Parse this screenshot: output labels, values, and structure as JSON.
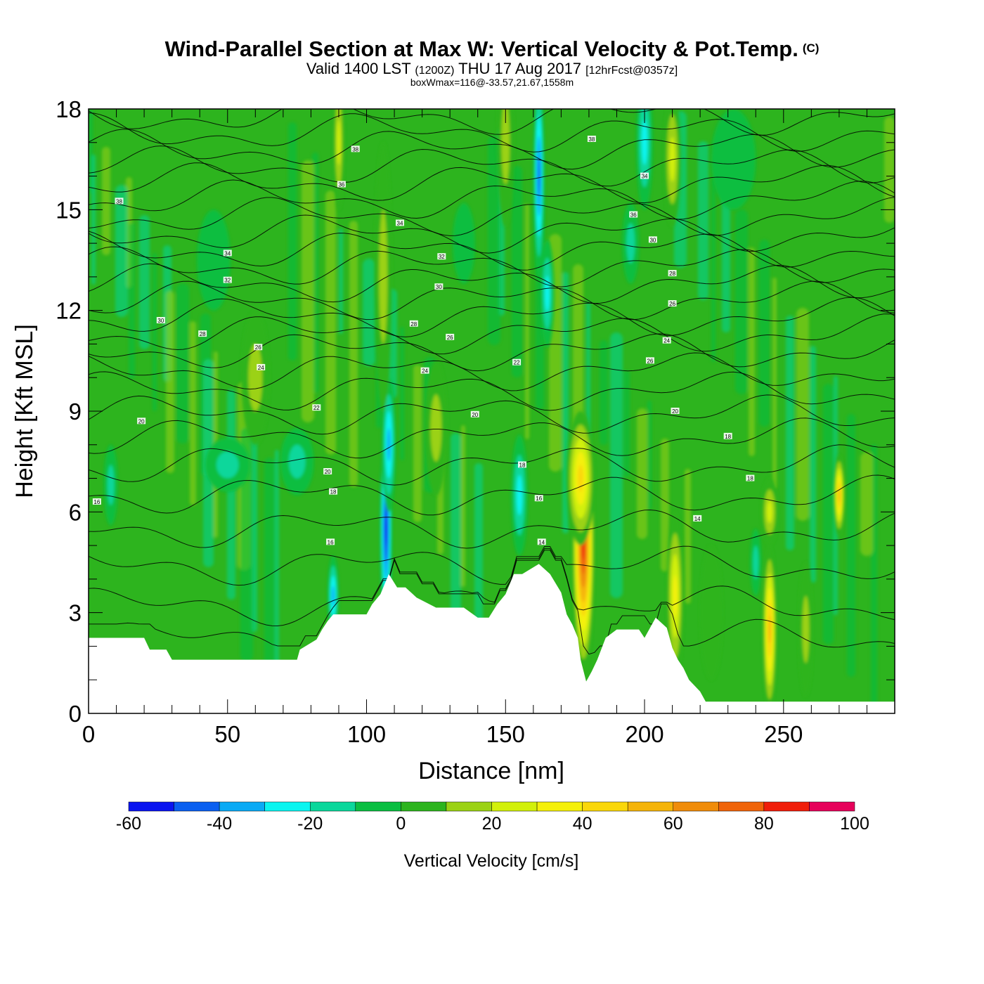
{
  "header": {
    "title": "Wind-Parallel Section at Max W: Vertical Velocity & Pot.Temp.",
    "title_suffix": "(C)",
    "subtitle_main_a": "Valid 1400 LST",
    "subtitle_z": "(1200Z)",
    "subtitle_main_b": "THU 17 Aug 2017",
    "subtitle_fcst": "[12hrFcst@0357z]",
    "subsubtitle": "boxWmax=116@-33.57,21.67,1558m"
  },
  "chart_data": {
    "type": "heatmap",
    "title": "Wind-Parallel Section at Max W: Vertical Velocity & Pot.Temp.",
    "xlabel": "Distance [nm]",
    "ylabel": "Height [Kft MSL]",
    "xlim": [
      0,
      290
    ],
    "ylim": [
      0,
      18
    ],
    "x_ticks": [
      0,
      50,
      100,
      150,
      200,
      250
    ],
    "x_tick_labels": [
      "0",
      "50",
      "100",
      "150",
      "200",
      "250"
    ],
    "y_ticks": [
      0,
      3,
      6,
      9,
      12,
      15,
      18
    ],
    "y_tick_labels": [
      "0",
      "3",
      "6",
      "9",
      "12",
      "15",
      "18"
    ],
    "colorbar": {
      "label": "Vertical Velocity [cm/s]",
      "levels": [
        -60,
        -50,
        -40,
        -30,
        -20,
        -10,
        0,
        10,
        20,
        30,
        40,
        50,
        60,
        70,
        80,
        90,
        100
      ],
      "tick_values": [
        -60,
        -40,
        -20,
        0,
        20,
        40,
        60,
        80,
        100
      ],
      "tick_labels": [
        "-60",
        "-40",
        "-20",
        "0",
        "20",
        "40",
        "60",
        "80",
        "100"
      ],
      "colors": [
        "#0a14f0",
        "#0a5ff0",
        "#0aaaf5",
        "#0af5f0",
        "#0ad79b",
        "#0abe41",
        "#2db41e",
        "#9bd214",
        "#d2f00a",
        "#f5f00a",
        "#fad70a",
        "#f5b40a",
        "#f08c0a",
        "#f0640a",
        "#f01e0a",
        "#e6005a"
      ]
    },
    "background_value": 3,
    "terrain_kft": {
      "x": [
        0,
        20,
        22,
        28,
        30,
        50,
        75,
        76,
        82,
        84,
        86,
        88,
        90,
        100,
        102,
        105,
        108,
        111,
        114,
        118,
        125,
        135,
        140,
        144,
        147,
        150,
        153,
        156,
        162,
        166,
        170,
        172,
        174,
        176,
        177,
        179,
        181,
        183,
        186,
        190,
        194,
        198,
        200,
        204,
        208,
        210,
        212,
        214,
        216,
        220,
        222,
        290
      ],
      "h": [
        2.25,
        2.25,
        1.9,
        1.9,
        1.6,
        1.6,
        1.6,
        1.9,
        2.2,
        2.5,
        2.75,
        2.95,
        2.95,
        2.95,
        3.25,
        3.55,
        4.15,
        3.75,
        3.75,
        3.45,
        3.15,
        3.15,
        2.85,
        2.85,
        3.25,
        3.55,
        4.15,
        4.15,
        4.45,
        4.15,
        3.6,
        2.95,
        2.65,
        2.25,
        1.6,
        0.95,
        1.25,
        1.6,
        2.25,
        2.5,
        2.5,
        2.5,
        2.25,
        2.85,
        2.55,
        1.95,
        1.6,
        1.35,
        1.0,
        0.65,
        0.35,
        0.35
      ]
    },
    "w_features": [
      {
        "x": 107,
        "y": 5.5,
        "halfwidth": 2.2,
        "halfheight": 3.0,
        "value": -55
      },
      {
        "x": 108,
        "y": 8.0,
        "halfwidth": 2.5,
        "halfheight": 2.0,
        "value": -40
      },
      {
        "x": 106,
        "y": 13.0,
        "halfwidth": 3.0,
        "halfheight": 4.0,
        "value": 22
      },
      {
        "x": 162,
        "y": 16.0,
        "halfwidth": 2.0,
        "halfheight": 3.0,
        "value": -50
      },
      {
        "x": 165,
        "y": 12.5,
        "halfwidth": 2.5,
        "halfheight": 1.6,
        "value": -25
      },
      {
        "x": 155,
        "y": 6.5,
        "halfwidth": 3.0,
        "halfheight": 1.8,
        "value": -25
      },
      {
        "x": 178,
        "y": 5.0,
        "halfwidth": 4.0,
        "halfheight": 3.8,
        "value": 85
      },
      {
        "x": 177,
        "y": 7.0,
        "halfwidth": 5.0,
        "halfheight": 2.0,
        "value": 45
      },
      {
        "x": 211,
        "y": 3.5,
        "halfwidth": 3.0,
        "halfheight": 2.5,
        "value": 35
      },
      {
        "x": 245,
        "y": 2.5,
        "halfwidth": 2.5,
        "halfheight": 2.5,
        "value": 55
      },
      {
        "x": 245,
        "y": 6.0,
        "halfwidth": 3.0,
        "halfheight": 1.0,
        "value": 30
      },
      {
        "x": 270,
        "y": 6.5,
        "halfwidth": 2.0,
        "halfheight": 1.2,
        "value": 55
      },
      {
        "x": 88,
        "y": 3.5,
        "halfwidth": 2.0,
        "halfheight": 1.2,
        "value": -35
      },
      {
        "x": 75,
        "y": 7.5,
        "halfwidth": 6.0,
        "halfheight": 1.0,
        "value": -20
      },
      {
        "x": 50,
        "y": 7.4,
        "halfwidth": 8.0,
        "halfheight": 0.8,
        "value": -15
      },
      {
        "x": 8,
        "y": 6.8,
        "halfwidth": 2.5,
        "halfheight": 1.2,
        "value": -22
      },
      {
        "x": 240,
        "y": 4.5,
        "halfwidth": 2.0,
        "halfheight": 1.0,
        "value": -20
      },
      {
        "x": 200,
        "y": 17.0,
        "halfwidth": 3.0,
        "halfheight": 2.0,
        "value": -25
      },
      {
        "x": 195,
        "y": 14.0,
        "halfwidth": 3.0,
        "halfheight": 1.2,
        "value": -20
      },
      {
        "x": 210,
        "y": 16.5,
        "halfwidth": 3.0,
        "halfheight": 2.0,
        "value": 28
      },
      {
        "x": 90,
        "y": 17.0,
        "halfwidth": 2.0,
        "halfheight": 2.0,
        "value": 25
      },
      {
        "x": 150,
        "y": 17.0,
        "halfwidth": 3.0,
        "halfheight": 2.5,
        "value": 15
      },
      {
        "x": 232,
        "y": 16.5,
        "halfwidth": 8.0,
        "halfheight": 1.5,
        "value": -12
      },
      {
        "x": 45,
        "y": 13.5,
        "halfwidth": 6.0,
        "halfheight": 1.5,
        "value": -12
      },
      {
        "x": 135,
        "y": 14.0,
        "halfwidth": 4.0,
        "halfheight": 1.2,
        "value": -12
      },
      {
        "x": 60,
        "y": 10.0,
        "halfwidth": 5.0,
        "halfheight": 2.0,
        "value": 15
      },
      {
        "x": 125,
        "y": 8.5,
        "halfwidth": 4.0,
        "halfheight": 2.0,
        "value": 15
      },
      {
        "x": 224,
        "y": 3.0,
        "halfwidth": 4.0,
        "halfheight": 2.0,
        "value": 12
      },
      {
        "x": 258,
        "y": 2.5,
        "halfwidth": 2.5,
        "halfheight": 2.0,
        "value": 22
      }
    ],
    "contour_labels": [
      {
        "x": 96,
        "y": 16.8,
        "text": "38"
      },
      {
        "x": 181,
        "y": 17.1,
        "text": "38"
      },
      {
        "x": 11,
        "y": 15.25,
        "text": "38"
      },
      {
        "x": 91,
        "y": 15.75,
        "text": "36"
      },
      {
        "x": 200,
        "y": 16.0,
        "text": "34"
      },
      {
        "x": 112,
        "y": 14.6,
        "text": "34"
      },
      {
        "x": 196,
        "y": 14.85,
        "text": "36"
      },
      {
        "x": 50,
        "y": 13.7,
        "text": "34"
      },
      {
        "x": 127,
        "y": 13.6,
        "text": "32"
      },
      {
        "x": 203,
        "y": 14.1,
        "text": "30"
      },
      {
        "x": 50,
        "y": 12.9,
        "text": "32"
      },
      {
        "x": 210,
        "y": 13.1,
        "text": "28"
      },
      {
        "x": 126,
        "y": 12.7,
        "text": "30"
      },
      {
        "x": 210,
        "y": 12.2,
        "text": "26"
      },
      {
        "x": 26,
        "y": 11.7,
        "text": "30"
      },
      {
        "x": 117,
        "y": 11.6,
        "text": "28"
      },
      {
        "x": 41,
        "y": 11.3,
        "text": "28"
      },
      {
        "x": 130,
        "y": 11.2,
        "text": "26"
      },
      {
        "x": 208,
        "y": 11.1,
        "text": "24"
      },
      {
        "x": 61,
        "y": 10.9,
        "text": "26"
      },
      {
        "x": 202,
        "y": 10.5,
        "text": "26"
      },
      {
        "x": 154,
        "y": 10.45,
        "text": "22"
      },
      {
        "x": 62,
        "y": 10.3,
        "text": "24"
      },
      {
        "x": 121,
        "y": 10.2,
        "text": "24"
      },
      {
        "x": 82,
        "y": 9.1,
        "text": "22"
      },
      {
        "x": 139,
        "y": 8.9,
        "text": "20"
      },
      {
        "x": 211,
        "y": 9.0,
        "text": "20"
      },
      {
        "x": 19,
        "y": 8.7,
        "text": "20"
      },
      {
        "x": 230,
        "y": 8.25,
        "text": "18"
      },
      {
        "x": 156,
        "y": 7.4,
        "text": "18"
      },
      {
        "x": 86,
        "y": 7.2,
        "text": "20"
      },
      {
        "x": 238,
        "y": 7.0,
        "text": "18"
      },
      {
        "x": 88,
        "y": 6.6,
        "text": "18"
      },
      {
        "x": 3,
        "y": 6.3,
        "text": "16"
      },
      {
        "x": 162,
        "y": 6.4,
        "text": "16"
      },
      {
        "x": 219,
        "y": 5.8,
        "text": "14"
      },
      {
        "x": 87,
        "y": 5.1,
        "text": "16"
      },
      {
        "x": 163,
        "y": 5.1,
        "text": "14"
      }
    ],
    "contour_base_heights_kft": [
      2.2,
      3.2,
      4.4,
      5.5,
      6.5,
      7.4,
      8.2,
      8.9,
      9.6,
      10.2,
      10.8,
      11.3,
      11.8,
      12.3,
      12.8,
      13.3,
      13.8,
      14.3,
      14.8,
      15.3,
      15.8,
      16.3,
      16.8,
      17.3,
      17.8
    ]
  }
}
